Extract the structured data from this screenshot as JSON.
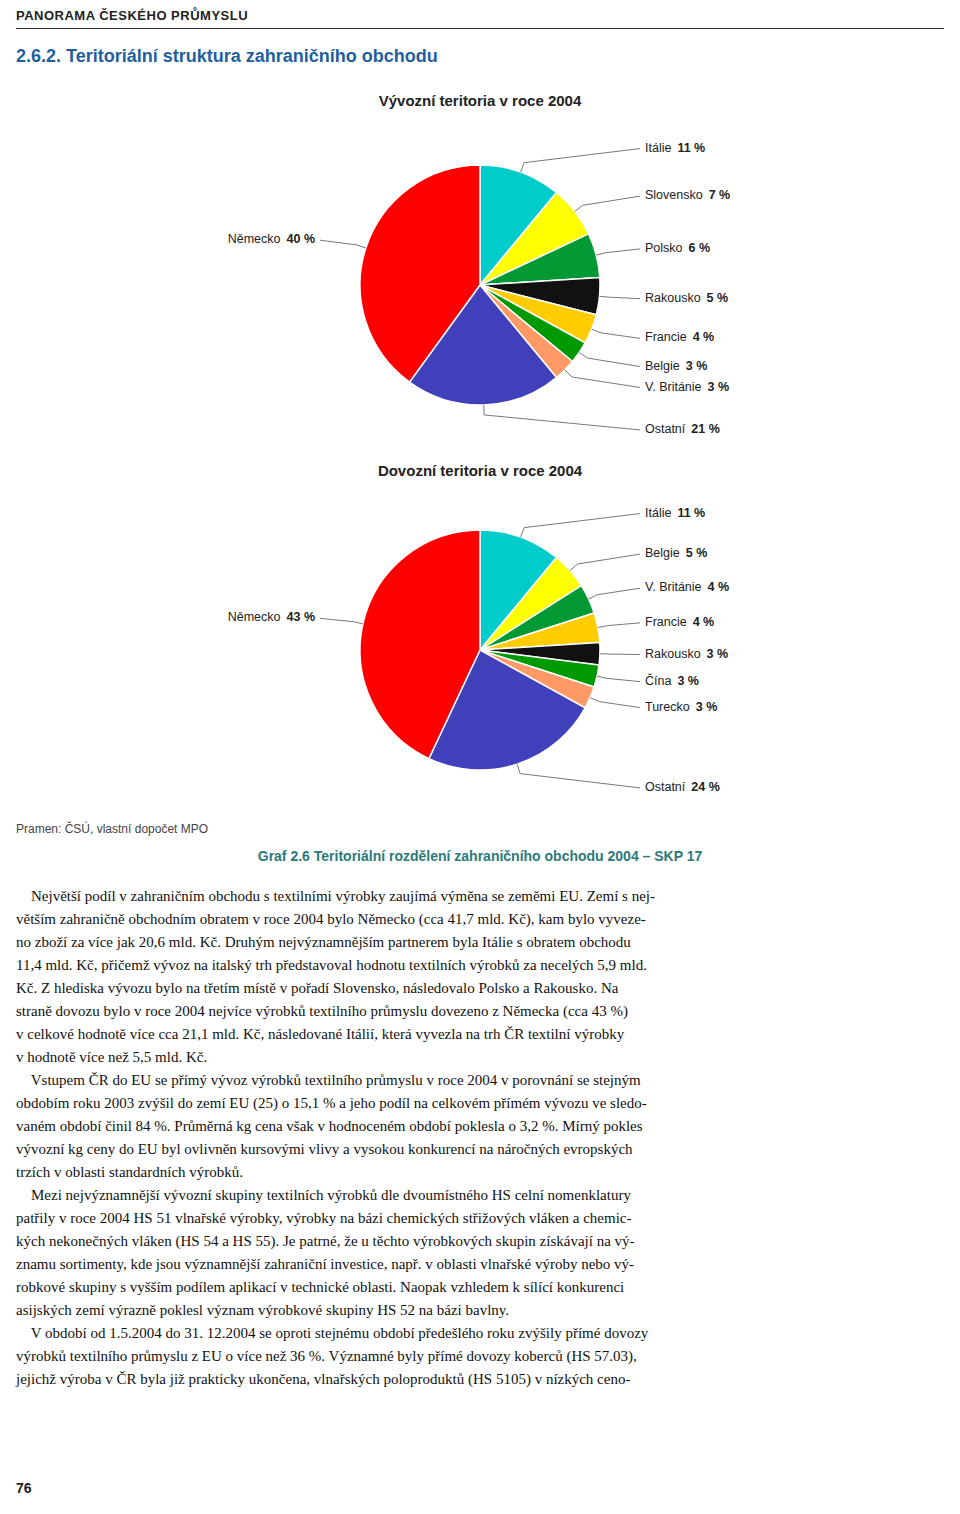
{
  "header": "PANORAMA ČESKÉHO PRŮMYSLU",
  "section_title": "2.6.2. Teritoriální struktura zahraničního obchodu",
  "chart_data": [
    {
      "type": "pie",
      "title": "Vývozní teritoria v roce 2004",
      "categories": [
        "Itálie",
        "Slovensko",
        "Polsko",
        "Rakousko",
        "Francie",
        "Belgie",
        "V. Británie",
        "Ostatní",
        "Německo"
      ],
      "values": [
        11,
        7,
        6,
        5,
        4,
        3,
        3,
        21,
        40
      ],
      "value_labels": [
        "11 %",
        "7 %",
        "6 %",
        "5 %",
        "4 %",
        "3 %",
        "3 %",
        "21 %",
        "40 %"
      ],
      "colors": [
        "#00cccc",
        "#ffff00",
        "#009933",
        "#111111",
        "#ffcc00",
        "#009900",
        "#ff9966",
        "#4040bb",
        "#ff0000"
      ],
      "data_labels": true
    },
    {
      "type": "pie",
      "title": "Dovozní teritoria v roce 2004",
      "categories": [
        "Itálie",
        "Belgie",
        "V. Británie",
        "Francie",
        "Rakousko",
        "Čína",
        "Turecko",
        "Ostatní",
        "Německo"
      ],
      "values": [
        11,
        5,
        4,
        4,
        3,
        3,
        3,
        24,
        43
      ],
      "value_labels": [
        "11 %",
        "5 %",
        "4 %",
        "4 %",
        "3 %",
        "3 %",
        "3 %",
        "24 %",
        "43 %"
      ],
      "colors": [
        "#00cccc",
        "#ffff00",
        "#009933",
        "#ffcc00",
        "#111111",
        "#009900",
        "#ff9966",
        "#4040bb",
        "#ff0000"
      ],
      "data_labels": true
    }
  ],
  "caption": "Pramen: ČSÚ, vlastní dopočet MPO",
  "graf_label": "Graf 2.6 Teritoriální rozdělení zahraničního obchodu 2004 – SKP 17",
  "body_text": "    Největší podíl v zahraničním obchodu s textilními výrobky zaujímá výměna se zeměmi EU. Zemí s nej-\nvětším zahraničně obchodním obratem v roce 2004 bylo Německo (cca 41,7 mld. Kč), kam bylo vyveze-\nno zboží za více jak 20,6 mld. Kč. Druhým nejvýznamnějším partnerem byla Itálie s obratem obchodu\n11,4 mld. Kč, přičemž vývoz na italský trh představoval hodnotu textilních výrobků za necelých 5,9 mld.\nKč. Z hlediska vývozu bylo na třetím místě v pořadí Slovensko, následovalo Polsko a Rakousko. Na\nstraně dovozu bylo v roce 2004 nejvíce výrobků textilního průmyslu dovezeno z Německa (cca 43 %)\nv celkové hodnotě více cca 21,1 mld. Kč, následované Itálií, která vyvezla na trh ČR textilní výrobky\nv hodnotě více než 5,5 mld. Kč.\n    Vstupem ČR do EU se přímý vývoz výrobků textilního průmyslu v roce 2004 v porovnání se stejným\nobdobím roku 2003 zvýšil do zemí EU (25) o 15,1 % a jeho podíl na celkovém přímém vývozu ve sledo-\nvaném období činil 84 %. Průměrná kg cena však v hodnoceném období poklesla o 3,2 %. Mírný pokles\nvývozní kg ceny do EU byl ovlivněn kursovými vlivy a vysokou konkurencí na náročných evropských\ntrzích v oblasti standardních výrobků.\n    Mezi nejvýznamnější vývozní skupiny textilních výrobků dle dvoumístného HS celní nomenklatury\npatřily v roce 2004 HS 51 vlnařské výrobky, výrobky na bázi chemických střižových vláken a chemic-\nkých nekonečných vláken (HS 54 a HS 55). Je patrné, že u těchto výrobkových skupin získávají na vý-\nznamu sortimenty, kde jsou významnější zahraniční investice, např. v oblasti vlnařské výroby nebo vý-\nrobkové skupiny s vyšším podílem aplikací v technické oblasti. Naopak vzhledem k sílící konkurenci\nasijských zemí výrazně poklesl význam výrobkové skupiny HS 52 na bázi bavlny.\n    V období od 1.5.2004 do 31. 12.2004 se oproti stejnému období předešlého roku zvýšily přímé dovozy\nvýrobků textilního průmyslu z EU o více než 36 %. Významné byly přímé dovozy koberců (HS 57.03),\njejichž výroba v ČR byla již prakticky ukončena, vlnařských poloproduktů (HS 5105) v nízkých ceno-",
  "page_number": "76"
}
